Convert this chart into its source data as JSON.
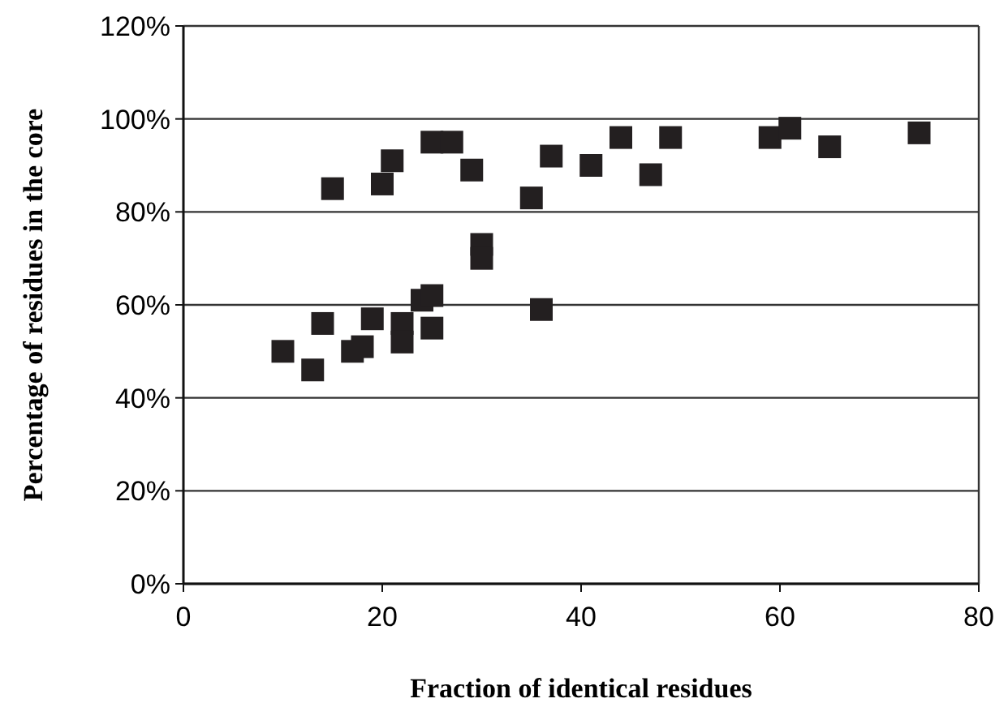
{
  "chart_data": {
    "type": "scatter",
    "xlabel": "Fraction of identical residues",
    "ylabel": "Percentage of residues in the core",
    "x": [
      10,
      13,
      14,
      15,
      17,
      18,
      19,
      20,
      21,
      22,
      22,
      24,
      25,
      25,
      25,
      27,
      29,
      30,
      30,
      35,
      36,
      37,
      41,
      44,
      47,
      49,
      59,
      61,
      65,
      74
    ],
    "series": [
      {
        "color": "#231f20",
        "values": [
          50,
          46,
          56,
          85,
          50,
          51,
          57,
          86,
          91,
          56,
          52,
          61,
          62,
          55,
          95,
          95,
          89,
          73,
          70,
          83,
          59,
          92,
          90,
          96,
          88,
          96,
          96,
          98,
          94,
          97
        ]
      }
    ],
    "xlim": [
      0,
      80
    ],
    "xticks": [
      0,
      20,
      40,
      60,
      80
    ],
    "ylim": [
      0,
      120
    ],
    "yticks": [
      {
        "value": 0,
        "label": "0%"
      },
      {
        "value": 20,
        "label": "20%"
      },
      {
        "value": 40,
        "label": "40%"
      },
      {
        "value": 60,
        "label": "60%"
      },
      {
        "value": 80,
        "label": "80%"
      },
      {
        "value": 100,
        "label": "100%"
      },
      {
        "value": 120,
        "label": "120%"
      }
    ],
    "grid": "y",
    "marker": "square"
  }
}
